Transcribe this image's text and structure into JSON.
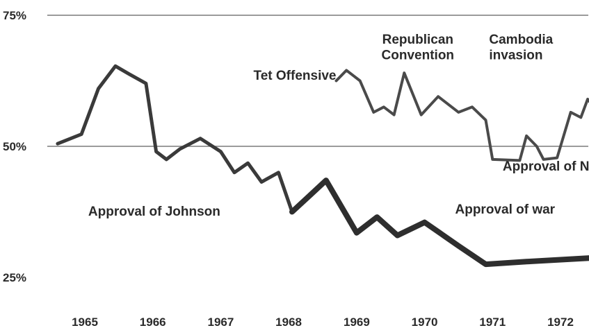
{
  "chart_data": {
    "type": "line",
    "title": "",
    "xlabel": "",
    "ylabel": "",
    "ylim": [
      25,
      75
    ],
    "xlim": [
      1965,
      1972.85
    ],
    "y_ticks": [
      {
        "value": 75,
        "label": "75%"
      },
      {
        "value": 50,
        "label": "50%"
      },
      {
        "value": 25,
        "label": "25%"
      }
    ],
    "x_ticks": [
      {
        "value": 1965,
        "label": "1965"
      },
      {
        "value": 1966,
        "label": "1966"
      },
      {
        "value": 1967,
        "label": "1967"
      },
      {
        "value": 1968,
        "label": "1968"
      },
      {
        "value": 1969,
        "label": "1969"
      },
      {
        "value": 1970,
        "label": "1970"
      },
      {
        "value": 1971,
        "label": "1971"
      },
      {
        "value": 1972,
        "label": "1972"
      }
    ],
    "grid_lines_y": [
      75,
      50
    ],
    "series": [
      {
        "name": "Approval of Johnson",
        "color": "#3a3a3a",
        "points": [
          [
            1964.6,
            50.5
          ],
          [
            1964.95,
            52.3
          ],
          [
            1965.2,
            61.0
          ],
          [
            1965.45,
            65.3
          ],
          [
            1965.65,
            63.8
          ],
          [
            1965.9,
            62.0
          ],
          [
            1966.05,
            49.0
          ],
          [
            1966.2,
            47.5
          ],
          [
            1966.4,
            49.5
          ],
          [
            1966.7,
            51.5
          ],
          [
            1967.0,
            49.0
          ],
          [
            1967.2,
            45.0
          ],
          [
            1967.4,
            46.8
          ],
          [
            1967.6,
            43.2
          ],
          [
            1967.85,
            45.0
          ],
          [
            1968.05,
            37.5
          ],
          [
            1968.3,
            40.5
          ],
          [
            1968.55,
            43.5
          ]
        ]
      },
      {
        "name": "Approval of Nixon",
        "color": "#4a4a4a",
        "points": [
          [
            1968.7,
            62.5
          ],
          [
            1968.85,
            64.5
          ],
          [
            1969.05,
            62.5
          ],
          [
            1969.25,
            56.5
          ],
          [
            1969.4,
            57.5
          ],
          [
            1969.55,
            56.0
          ],
          [
            1969.7,
            64.0
          ],
          [
            1969.95,
            56.0
          ],
          [
            1970.2,
            59.5
          ],
          [
            1970.5,
            56.5
          ],
          [
            1970.7,
            57.5
          ],
          [
            1970.9,
            55.0
          ],
          [
            1971.0,
            47.5
          ],
          [
            1971.4,
            47.3
          ],
          [
            1971.5,
            52.0
          ],
          [
            1971.65,
            50.0
          ],
          [
            1971.75,
            47.5
          ],
          [
            1971.95,
            47.8
          ],
          [
            1972.15,
            56.5
          ],
          [
            1972.3,
            55.5
          ],
          [
            1972.4,
            59.0
          ],
          [
            1972.55,
            56.5
          ],
          [
            1972.85,
            59.0
          ]
        ]
      },
      {
        "name": "Approval of war",
        "color": "#2e2e2e",
        "points": [
          [
            1968.05,
            37.5
          ],
          [
            1968.3,
            40.5
          ],
          [
            1968.55,
            43.5
          ],
          [
            1969.0,
            33.5
          ],
          [
            1969.3,
            36.5
          ],
          [
            1969.6,
            33.0
          ],
          [
            1970.0,
            35.5
          ],
          [
            1970.5,
            31.0
          ],
          [
            1970.9,
            27.5
          ],
          [
            1971.5,
            28.0
          ],
          [
            1972.85,
            29.0
          ]
        ]
      }
    ],
    "annotations": [
      {
        "text": "Republican",
        "x": 1969.9,
        "y": 69.6,
        "anchor": "middle"
      },
      {
        "text": "Convention",
        "x": 1969.9,
        "y": 66.6,
        "anchor": "middle"
      },
      {
        "text": "Cambodia",
        "x": 1970.95,
        "y": 69.6,
        "anchor": "start"
      },
      {
        "text": "invasion",
        "x": 1970.95,
        "y": 66.6,
        "anchor": "start"
      },
      {
        "text": "Tet Offensive",
        "x": 1968.7,
        "y": 62.7,
        "anchor": "end"
      },
      {
        "text": "Approval of Nixon",
        "x": 1971.15,
        "y": 45.4,
        "anchor": "start"
      },
      {
        "text": "Approval of Johnson",
        "x": 1965.05,
        "y": 36.8,
        "anchor": "start"
      },
      {
        "text": "Approval of war",
        "x": 1970.45,
        "y": 37.2,
        "anchor": "start"
      }
    ]
  }
}
